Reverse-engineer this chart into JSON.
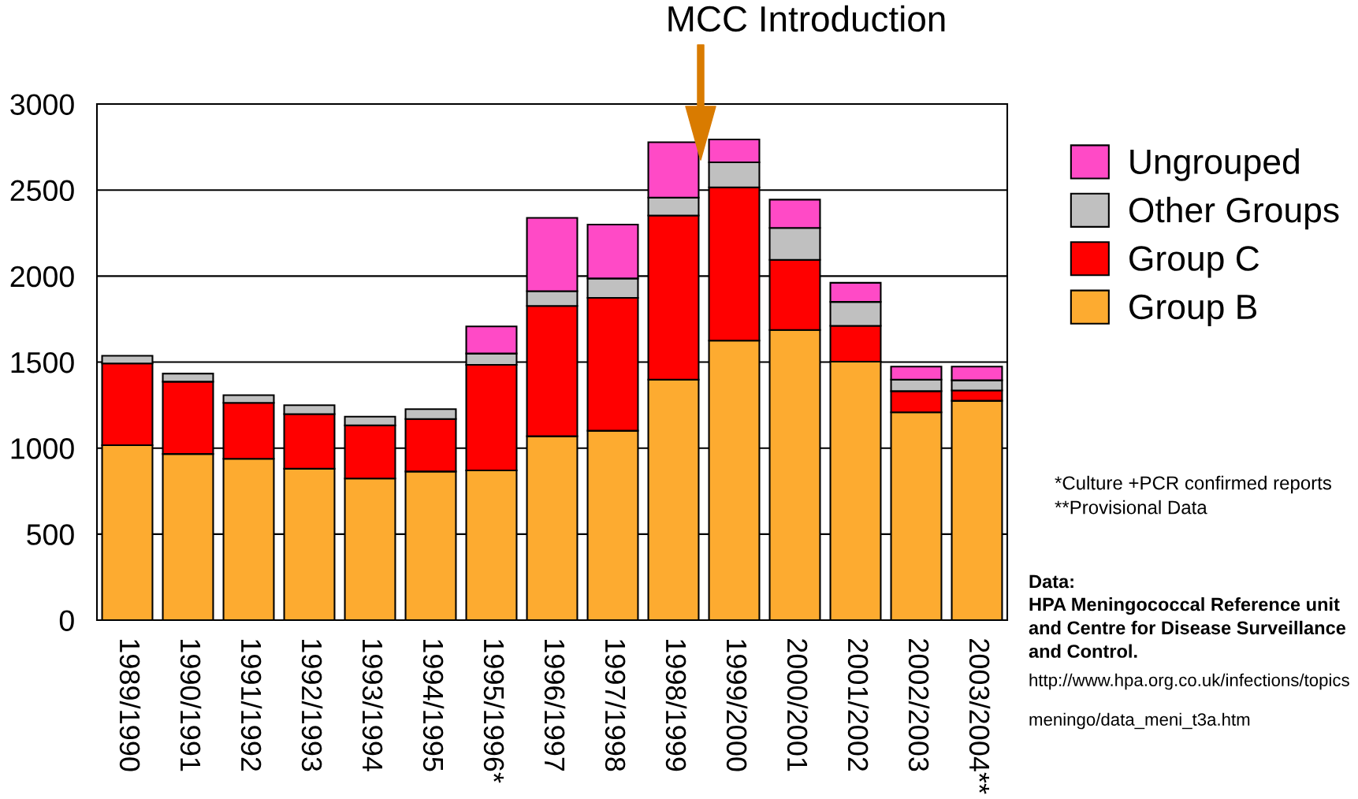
{
  "chart_data": {
    "type": "bar",
    "stacked": true,
    "categories": [
      "1989/1990",
      "1990/1991",
      "1991/1992",
      "1992/1993",
      "1993/1994",
      "1994/1995",
      "1995/1996*",
      "1996/1997",
      "1997/1998",
      "1998/1999",
      "1999/2000",
      "2000/2001",
      "2001/2002",
      "2002/2003",
      "2003/2004**"
    ],
    "series": [
      {
        "name": "Group B",
        "color": "#fdab30",
        "values": [
          1017,
          966,
          938,
          880,
          823,
          864,
          870,
          1069,
          1101,
          1398,
          1625,
          1687,
          1502,
          1208,
          1275
        ]
      },
      {
        "name": "Group C",
        "color": "#ff0000",
        "values": [
          475,
          420,
          325,
          318,
          309,
          305,
          614,
          757,
          772,
          954,
          891,
          407,
          209,
          123,
          60
        ]
      },
      {
        "name": "Other Groups",
        "color": "#c0c0c0",
        "values": [
          45,
          47,
          45,
          51,
          51,
          57,
          66,
          86,
          113,
          104,
          145,
          186,
          139,
          67,
          59
        ]
      },
      {
        "name": "Ungrouped",
        "color": "#ff4ac6",
        "values": [
          null,
          null,
          null,
          null,
          null,
          null,
          157,
          426,
          313,
          322,
          133,
          164,
          111,
          76,
          80
        ]
      }
    ],
    "ylim": [
      0,
      3000
    ],
    "yticks": [
      0,
      500,
      1000,
      1500,
      2000,
      2500,
      3000
    ],
    "grid": "y",
    "legend": "top right",
    "annotations": [
      "MCC Introduction",
      "*Culture +PCR confirmed reports",
      "**Provisional Data",
      "Data:",
      "HPA Meningococcal Reference unit\nand Centre for Disease Surveillance\nand Control.",
      "http://www.hpa.org.co.uk/infections/topics",
      "meningo/data_meni_t3a.htm"
    ]
  }
}
